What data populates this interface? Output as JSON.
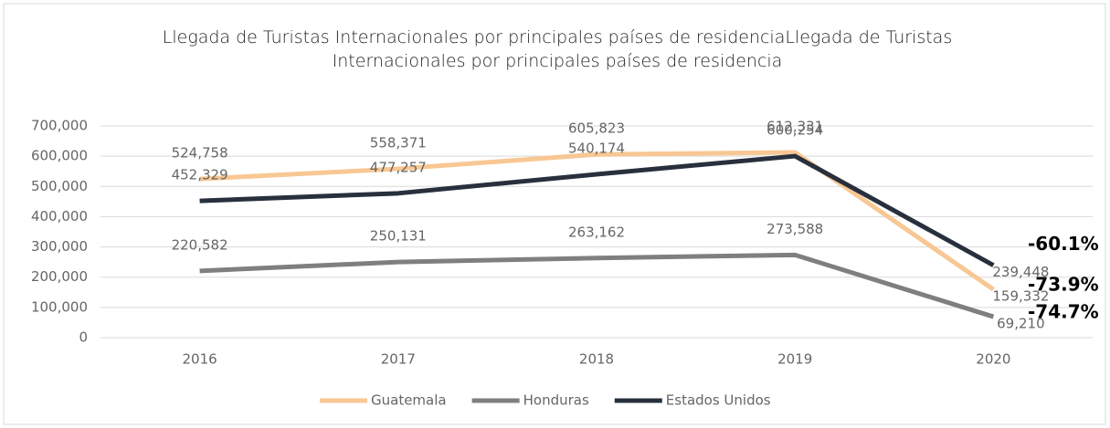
{
  "chart_data": {
    "type": "line",
    "title": "Llegada de Turistas Internacionales por principales países de residenciaLlegada de Turistas Internacionales por principales países de residencia",
    "categories": [
      "2016",
      "2017",
      "2018",
      "2019",
      "2020"
    ],
    "series": [
      {
        "name": "Guatemala",
        "color": "#f8c793",
        "values": [
          524758,
          558371,
          605823,
          612331,
          159332
        ],
        "value_labels": [
          "524,758",
          "558,371",
          "605,823",
          "612,331",
          "159,332"
        ],
        "change": "-73.9%"
      },
      {
        "name": "Honduras",
        "color": "#7f7f7f",
        "values": [
          220582,
          250131,
          263162,
          273588,
          69210
        ],
        "value_labels": [
          "220,582",
          "250,131",
          "263,162",
          "273,588",
          "69,210"
        ],
        "change": "-74.7%"
      },
      {
        "name": "Estados Unidos",
        "color": "#28303d",
        "values": [
          452329,
          477257,
          540174,
          600254,
          239448
        ],
        "value_labels": [
          "452,329",
          "477,257",
          "540,174",
          "600,254",
          "239,448"
        ],
        "change": "-60.1%"
      }
    ],
    "ylim": [
      0,
      700000
    ],
    "yticks": [
      0,
      {
        "value": 100000,
        "label": "100,000"
      },
      {
        "value": 200000,
        "label": "200,000"
      },
      {
        "value": 300000,
        "label": "300,000"
      },
      {
        "value": 400000,
        "label": "400,000"
      },
      {
        "value": 500000,
        "label": "500,000"
      },
      {
        "value": 600000,
        "label": "600,000"
      },
      {
        "value": 700000,
        "label": "700,000"
      }
    ],
    "grid": true,
    "legend": "bottom"
  }
}
